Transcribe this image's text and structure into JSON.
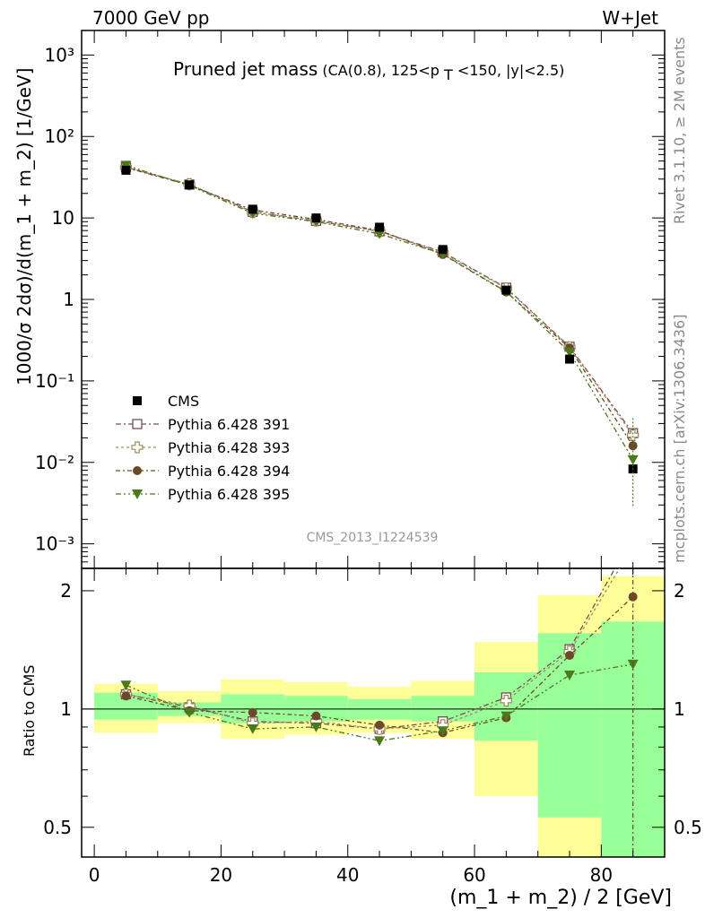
{
  "header": {
    "left": "7000 GeV pp",
    "right": "W+Jet"
  },
  "plot_title": {
    "main": "Pruned jet mass",
    "sub_prefix": "(CA(0.8), 125<p",
    "sub_sub": "T",
    "sub_suffix": "<150, |y|<2.5)"
  },
  "side_labels": {
    "rivet": "Rivet 3.1.10, ≥ 2M events",
    "mcplots": "mcplots.cern.ch [arXiv:1306.3436]"
  },
  "analysis_id": "CMS_2013_I1224539",
  "colors": {
    "cms": "#000000",
    "p391": "#7b4a5a",
    "p393": "#a08a5a",
    "p394": "#6b4a2a",
    "p395": "#4a7a1a",
    "band_inner": "#99ff99",
    "band_outer": "#ffff99"
  },
  "chart_data": {
    "type": "line",
    "title": "Pruned jet mass",
    "xlabel": "(m_1 + m_2) / 2 [GeV]",
    "ylabel": "1000/σ 2dσ)/d(m_1 + m_2) [1/GeV]",
    "ratio_ylabel": "Ratio to CMS",
    "xlim": [
      -2,
      90
    ],
    "ylim": [
      0.0005,
      2000
    ],
    "yscale": "log",
    "ratio_ylim": [
      0.42,
      2.28
    ],
    "x": [
      5,
      15,
      25,
      35,
      45,
      55,
      65,
      75,
      85
    ],
    "x_ticks": [
      0,
      20,
      40,
      60,
      80
    ],
    "y_tick_labels": [
      "10⁻³",
      "10⁻²",
      "10⁻¹",
      "1",
      "10",
      "10²",
      "10³"
    ],
    "ratio_ticks": [
      "0.5",
      "1",
      "2"
    ],
    "legend_position": "lower-left",
    "data": {
      "name": "CMS",
      "values": [
        38.5,
        25.5,
        12.8,
        10.0,
        7.7,
        4.1,
        1.3,
        0.185,
        0.0083
      ],
      "band_inner": [
        [
          0.94,
          1.1
        ],
        [
          0.96,
          1.04
        ],
        [
          0.92,
          1.09
        ],
        [
          0.93,
          1.08
        ],
        [
          0.94,
          1.06
        ],
        [
          0.93,
          1.08
        ],
        [
          0.83,
          1.24
        ],
        [
          0.53,
          1.56
        ],
        [
          0.42,
          1.67
        ]
      ],
      "band_outer": [
        [
          0.87,
          1.16
        ],
        [
          0.92,
          1.11
        ],
        [
          0.84,
          1.19
        ],
        [
          0.86,
          1.17
        ],
        [
          0.87,
          1.14
        ],
        [
          0.84,
          1.18
        ],
        [
          0.6,
          1.48
        ],
        [
          0.42,
          1.95
        ],
        [
          0.42,
          2.18
        ]
      ]
    },
    "series": [
      {
        "name": "Pythia 6.428 391",
        "marker": "open-square",
        "ratio": [
          1.09,
          1.01,
          0.93,
          0.92,
          0.89,
          0.93,
          1.07,
          1.42,
          2.75
        ]
      },
      {
        "name": "Pythia 6.428 393",
        "marker": "open-cross",
        "ratio": [
          1.09,
          1.02,
          0.92,
          0.93,
          0.89,
          0.91,
          1.05,
          1.4,
          2.6
        ]
      },
      {
        "name": "Pythia 6.428 394",
        "marker": "filled-circle",
        "ratio": [
          1.08,
          0.99,
          0.98,
          0.96,
          0.91,
          0.87,
          0.95,
          1.37,
          1.93
        ]
      },
      {
        "name": "Pythia 6.428 395",
        "marker": "filled-triangle-down",
        "ratio": [
          1.15,
          0.98,
          0.89,
          0.9,
          0.83,
          0.88,
          0.96,
          1.22,
          1.3
        ]
      }
    ]
  }
}
